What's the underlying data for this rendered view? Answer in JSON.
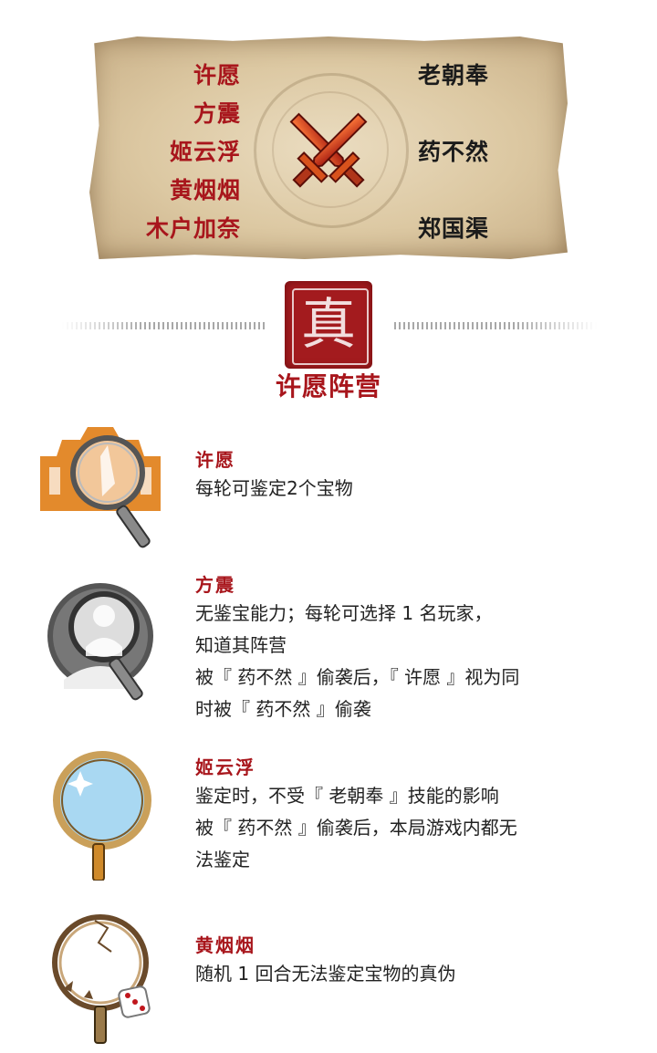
{
  "board": {
    "left_names": [
      "许愿",
      "方震",
      "姬云浮",
      "黄烟烟",
      "木户加奈"
    ],
    "right_names": [
      "老朝奉",
      "",
      "药不然",
      "",
      "郑国渠"
    ]
  },
  "seal_char": "真",
  "camp_title": "许愿阵营",
  "roles": [
    {
      "name": "许愿",
      "lines": [
        "每轮可鉴定2个宝物"
      ]
    },
    {
      "name": "方震",
      "lines": [
        "无鉴宝能力；每轮可选择 1 名玩家，",
        "知道其阵营",
        "被『 药不然 』偷袭后，『 许愿 』视为同",
        "时被『 药不然 』偷袭"
      ]
    },
    {
      "name": "姬云浮",
      "lines": [
        "鉴定时，不受『 老朝奉 』技能的影响",
        "被『 药不然 』偷袭后，本局游戏内都无",
        "法鉴定"
      ]
    },
    {
      "name": "黄烟烟",
      "lines": [
        "随机 1 回合无法鉴定宝物的真伪"
      ]
    }
  ],
  "colors": {
    "accent_red": "#a8161c",
    "seal_red": "#a31b1e",
    "parchment": "#dcc8a2"
  },
  "icons": [
    "crossed-swords-icon",
    "seal-stamp-icon",
    "magnifier-building-icon",
    "magnifier-person-icon",
    "magnifier-sparkle-icon",
    "magnifier-cracked-dice-icon"
  ]
}
